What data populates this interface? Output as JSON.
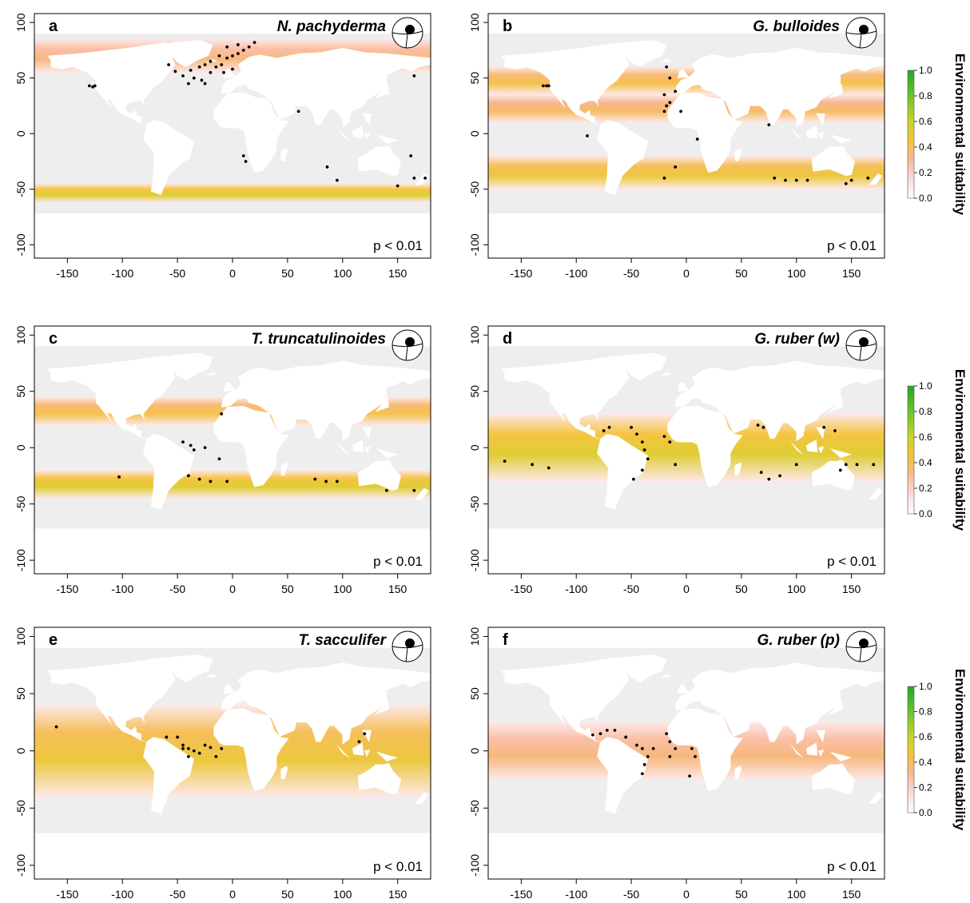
{
  "figure": {
    "significance_text": "p < 0.01",
    "colorbar": {
      "label": "Environmental suitability",
      "ticks": [
        "0.0",
        "0.2",
        "0.4",
        "0.6",
        "0.8",
        "1.0"
      ],
      "gradient_colors": [
        "#ffffff",
        "#fbd3d3",
        "#f9b78d",
        "#f6c23e",
        "#c9d428",
        "#6cc42b",
        "#1fa72b"
      ]
    }
  },
  "chart_data": [
    {
      "type": "heatmap",
      "panel_letter": "a",
      "title": "N. pachyderma",
      "xlim": [
        -180,
        180
      ],
      "ylim": [
        -112,
        108
      ],
      "x_ticks": [
        "-150",
        "-100",
        "-50",
        "0",
        "50",
        "100",
        "150"
      ],
      "y_ticks": [
        "100",
        "50",
        "0",
        "-50",
        "-100"
      ],
      "annotation": "p < 0.01",
      "suitability_bands": [
        {
          "lat_min": 55,
          "lat_max": 85,
          "level": 0.25
        },
        {
          "lat_min": -62,
          "lat_max": -45,
          "level": 0.45
        }
      ],
      "occurrences": [
        [
          -130,
          43
        ],
        [
          -127,
          42
        ],
        [
          -125,
          43
        ],
        [
          -58,
          62
        ],
        [
          -52,
          56
        ],
        [
          -45,
          52
        ],
        [
          -38,
          57
        ],
        [
          -30,
          60
        ],
        [
          -25,
          62
        ],
        [
          -20,
          65
        ],
        [
          -15,
          60
        ],
        [
          -10,
          62
        ],
        [
          -5,
          68
        ],
        [
          0,
          70
        ],
        [
          5,
          72
        ],
        [
          10,
          75
        ],
        [
          -35,
          50
        ],
        [
          -28,
          48
        ],
        [
          -20,
          55
        ],
        [
          -12,
          70
        ],
        [
          -5,
          78
        ],
        [
          5,
          80
        ],
        [
          15,
          78
        ],
        [
          20,
          82
        ],
        [
          -8,
          55
        ],
        [
          0,
          58
        ],
        [
          -25,
          45
        ],
        [
          -40,
          45
        ],
        [
          60,
          20
        ],
        [
          10,
          -20
        ],
        [
          12,
          -25
        ],
        [
          86,
          -30
        ],
        [
          95,
          -42
        ],
        [
          150,
          -47
        ],
        [
          162,
          -20
        ],
        [
          165,
          -40
        ],
        [
          175,
          -40
        ],
        [
          165,
          52
        ]
      ]
    },
    {
      "type": "heatmap",
      "panel_letter": "b",
      "title": "G. bulloides",
      "xlim": [
        -180,
        180
      ],
      "ylim": [
        -112,
        108
      ],
      "x_ticks": [
        "-150",
        "-100",
        "-50",
        "0",
        "50",
        "100",
        "150"
      ],
      "y_ticks": [
        "100",
        "50",
        "0",
        "-50",
        "-100"
      ],
      "annotation": "p < 0.01",
      "suitability_bands": [
        {
          "lat_min": 35,
          "lat_max": 60,
          "level": 0.35
        },
        {
          "lat_min": 10,
          "lat_max": 35,
          "level": 0.3
        },
        {
          "lat_min": -50,
          "lat_max": -20,
          "level": 0.4
        }
      ],
      "occurrences": [
        [
          -130,
          43
        ],
        [
          -127,
          43
        ],
        [
          -125,
          43
        ],
        [
          -18,
          60
        ],
        [
          -15,
          50
        ],
        [
          -20,
          35
        ],
        [
          -18,
          25
        ],
        [
          -20,
          20
        ],
        [
          -15,
          28
        ],
        [
          -10,
          38
        ],
        [
          -90,
          -2
        ],
        [
          -20,
          -40
        ],
        [
          -10,
          -30
        ],
        [
          10,
          -5
        ],
        [
          75,
          8
        ],
        [
          80,
          -40
        ],
        [
          90,
          -42
        ],
        [
          100,
          -42
        ],
        [
          110,
          -42
        ],
        [
          145,
          -45
        ],
        [
          150,
          -42
        ],
        [
          165,
          -40
        ],
        [
          -5,
          20
        ]
      ]
    },
    {
      "type": "heatmap",
      "panel_letter": "c",
      "title": "T. truncatulinoides",
      "xlim": [
        -180,
        180
      ],
      "ylim": [
        -112,
        108
      ],
      "x_ticks": [
        "-150",
        "-100",
        "-50",
        "0",
        "50",
        "100",
        "150"
      ],
      "y_ticks": [
        "100",
        "50",
        "0",
        "-50",
        "-100"
      ],
      "annotation": "p < 0.01",
      "suitability_bands": [
        {
          "lat_min": 20,
          "lat_max": 45,
          "level": 0.35
        },
        {
          "lat_min": -45,
          "lat_max": -20,
          "level": 0.45
        }
      ],
      "occurrences": [
        [
          -45,
          5
        ],
        [
          -38,
          2
        ],
        [
          -35,
          -2
        ],
        [
          -25,
          0
        ],
        [
          -12,
          -10
        ],
        [
          -40,
          -25
        ],
        [
          -30,
          -28
        ],
        [
          -20,
          -30
        ],
        [
          -5,
          -30
        ],
        [
          -103,
          -26
        ],
        [
          75,
          -28
        ],
        [
          85,
          -30
        ],
        [
          95,
          -30
        ],
        [
          140,
          -38
        ],
        [
          165,
          -38
        ],
        [
          -10,
          30
        ]
      ]
    },
    {
      "type": "heatmap",
      "panel_letter": "d",
      "title": "G. ruber (w)",
      "xlim": [
        -180,
        180
      ],
      "ylim": [
        -112,
        108
      ],
      "x_ticks": [
        "-150",
        "-100",
        "-50",
        "0",
        "50",
        "100",
        "150"
      ],
      "y_ticks": [
        "100",
        "50",
        "0",
        "-50",
        "-100"
      ],
      "annotation": "p < 0.01",
      "suitability_bands": [
        {
          "lat_min": -30,
          "lat_max": 30,
          "level": 0.45
        }
      ],
      "occurrences": [
        [
          -165,
          -12
        ],
        [
          -140,
          -15
        ],
        [
          -125,
          -18
        ],
        [
          -75,
          15
        ],
        [
          -70,
          18
        ],
        [
          -50,
          18
        ],
        [
          -45,
          12
        ],
        [
          -40,
          5
        ],
        [
          -38,
          -2
        ],
        [
          -35,
          -10
        ],
        [
          -40,
          -20
        ],
        [
          -48,
          -28
        ],
        [
          -15,
          5
        ],
        [
          -10,
          -15
        ],
        [
          -20,
          10
        ],
        [
          65,
          20
        ],
        [
          70,
          18
        ],
        [
          68,
          -22
        ],
        [
          75,
          -28
        ],
        [
          85,
          -25
        ],
        [
          100,
          -15
        ],
        [
          125,
          18
        ],
        [
          135,
          15
        ],
        [
          145,
          -15
        ],
        [
          155,
          -15
        ],
        [
          170,
          -15
        ],
        [
          140,
          -20
        ]
      ]
    },
    {
      "type": "heatmap",
      "panel_letter": "e",
      "title": "T. sacculifer",
      "xlim": [
        -180,
        180
      ],
      "ylim": [
        -112,
        108
      ],
      "x_ticks": [
        "-150",
        "-100",
        "-50",
        "0",
        "50",
        "100",
        "150"
      ],
      "y_ticks": [
        "100",
        "50",
        "0",
        "-50",
        "-100"
      ],
      "annotation": "p < 0.01",
      "suitability_bands": [
        {
          "lat_min": -40,
          "lat_max": 40,
          "level": 0.4
        }
      ],
      "occurrences": [
        [
          -160,
          21
        ],
        [
          -60,
          12
        ],
        [
          -50,
          12
        ],
        [
          -45,
          5
        ],
        [
          -40,
          2
        ],
        [
          -35,
          0
        ],
        [
          -30,
          -2
        ],
        [
          -25,
          5
        ],
        [
          -20,
          3
        ],
        [
          -15,
          -5
        ],
        [
          -10,
          2
        ],
        [
          -40,
          -5
        ],
        [
          -45,
          2
        ],
        [
          115,
          8
        ],
        [
          120,
          15
        ]
      ]
    },
    {
      "type": "heatmap",
      "panel_letter": "f",
      "title": "G. ruber (p)",
      "xlim": [
        -180,
        180
      ],
      "ylim": [
        -112,
        108
      ],
      "x_ticks": [
        "-150",
        "-100",
        "-50",
        "0",
        "50",
        "100",
        "150"
      ],
      "y_ticks": [
        "100",
        "50",
        "0",
        "-50",
        "-100"
      ],
      "annotation": "p < 0.01",
      "suitability_bands": [
        {
          "lat_min": -25,
          "lat_max": 25,
          "level": 0.25
        }
      ],
      "occurrences": [
        [
          -85,
          14
        ],
        [
          -78,
          15
        ],
        [
          -72,
          18
        ],
        [
          -65,
          18
        ],
        [
          -55,
          12
        ],
        [
          -45,
          5
        ],
        [
          -40,
          2
        ],
        [
          -35,
          -5
        ],
        [
          -38,
          -12
        ],
        [
          -30,
          2
        ],
        [
          -40,
          -20
        ],
        [
          -18,
          15
        ],
        [
          -15,
          8
        ],
        [
          -10,
          2
        ],
        [
          5,
          2
        ],
        [
          8,
          -5
        ],
        [
          3,
          -22
        ],
        [
          -15,
          -5
        ]
      ]
    }
  ]
}
